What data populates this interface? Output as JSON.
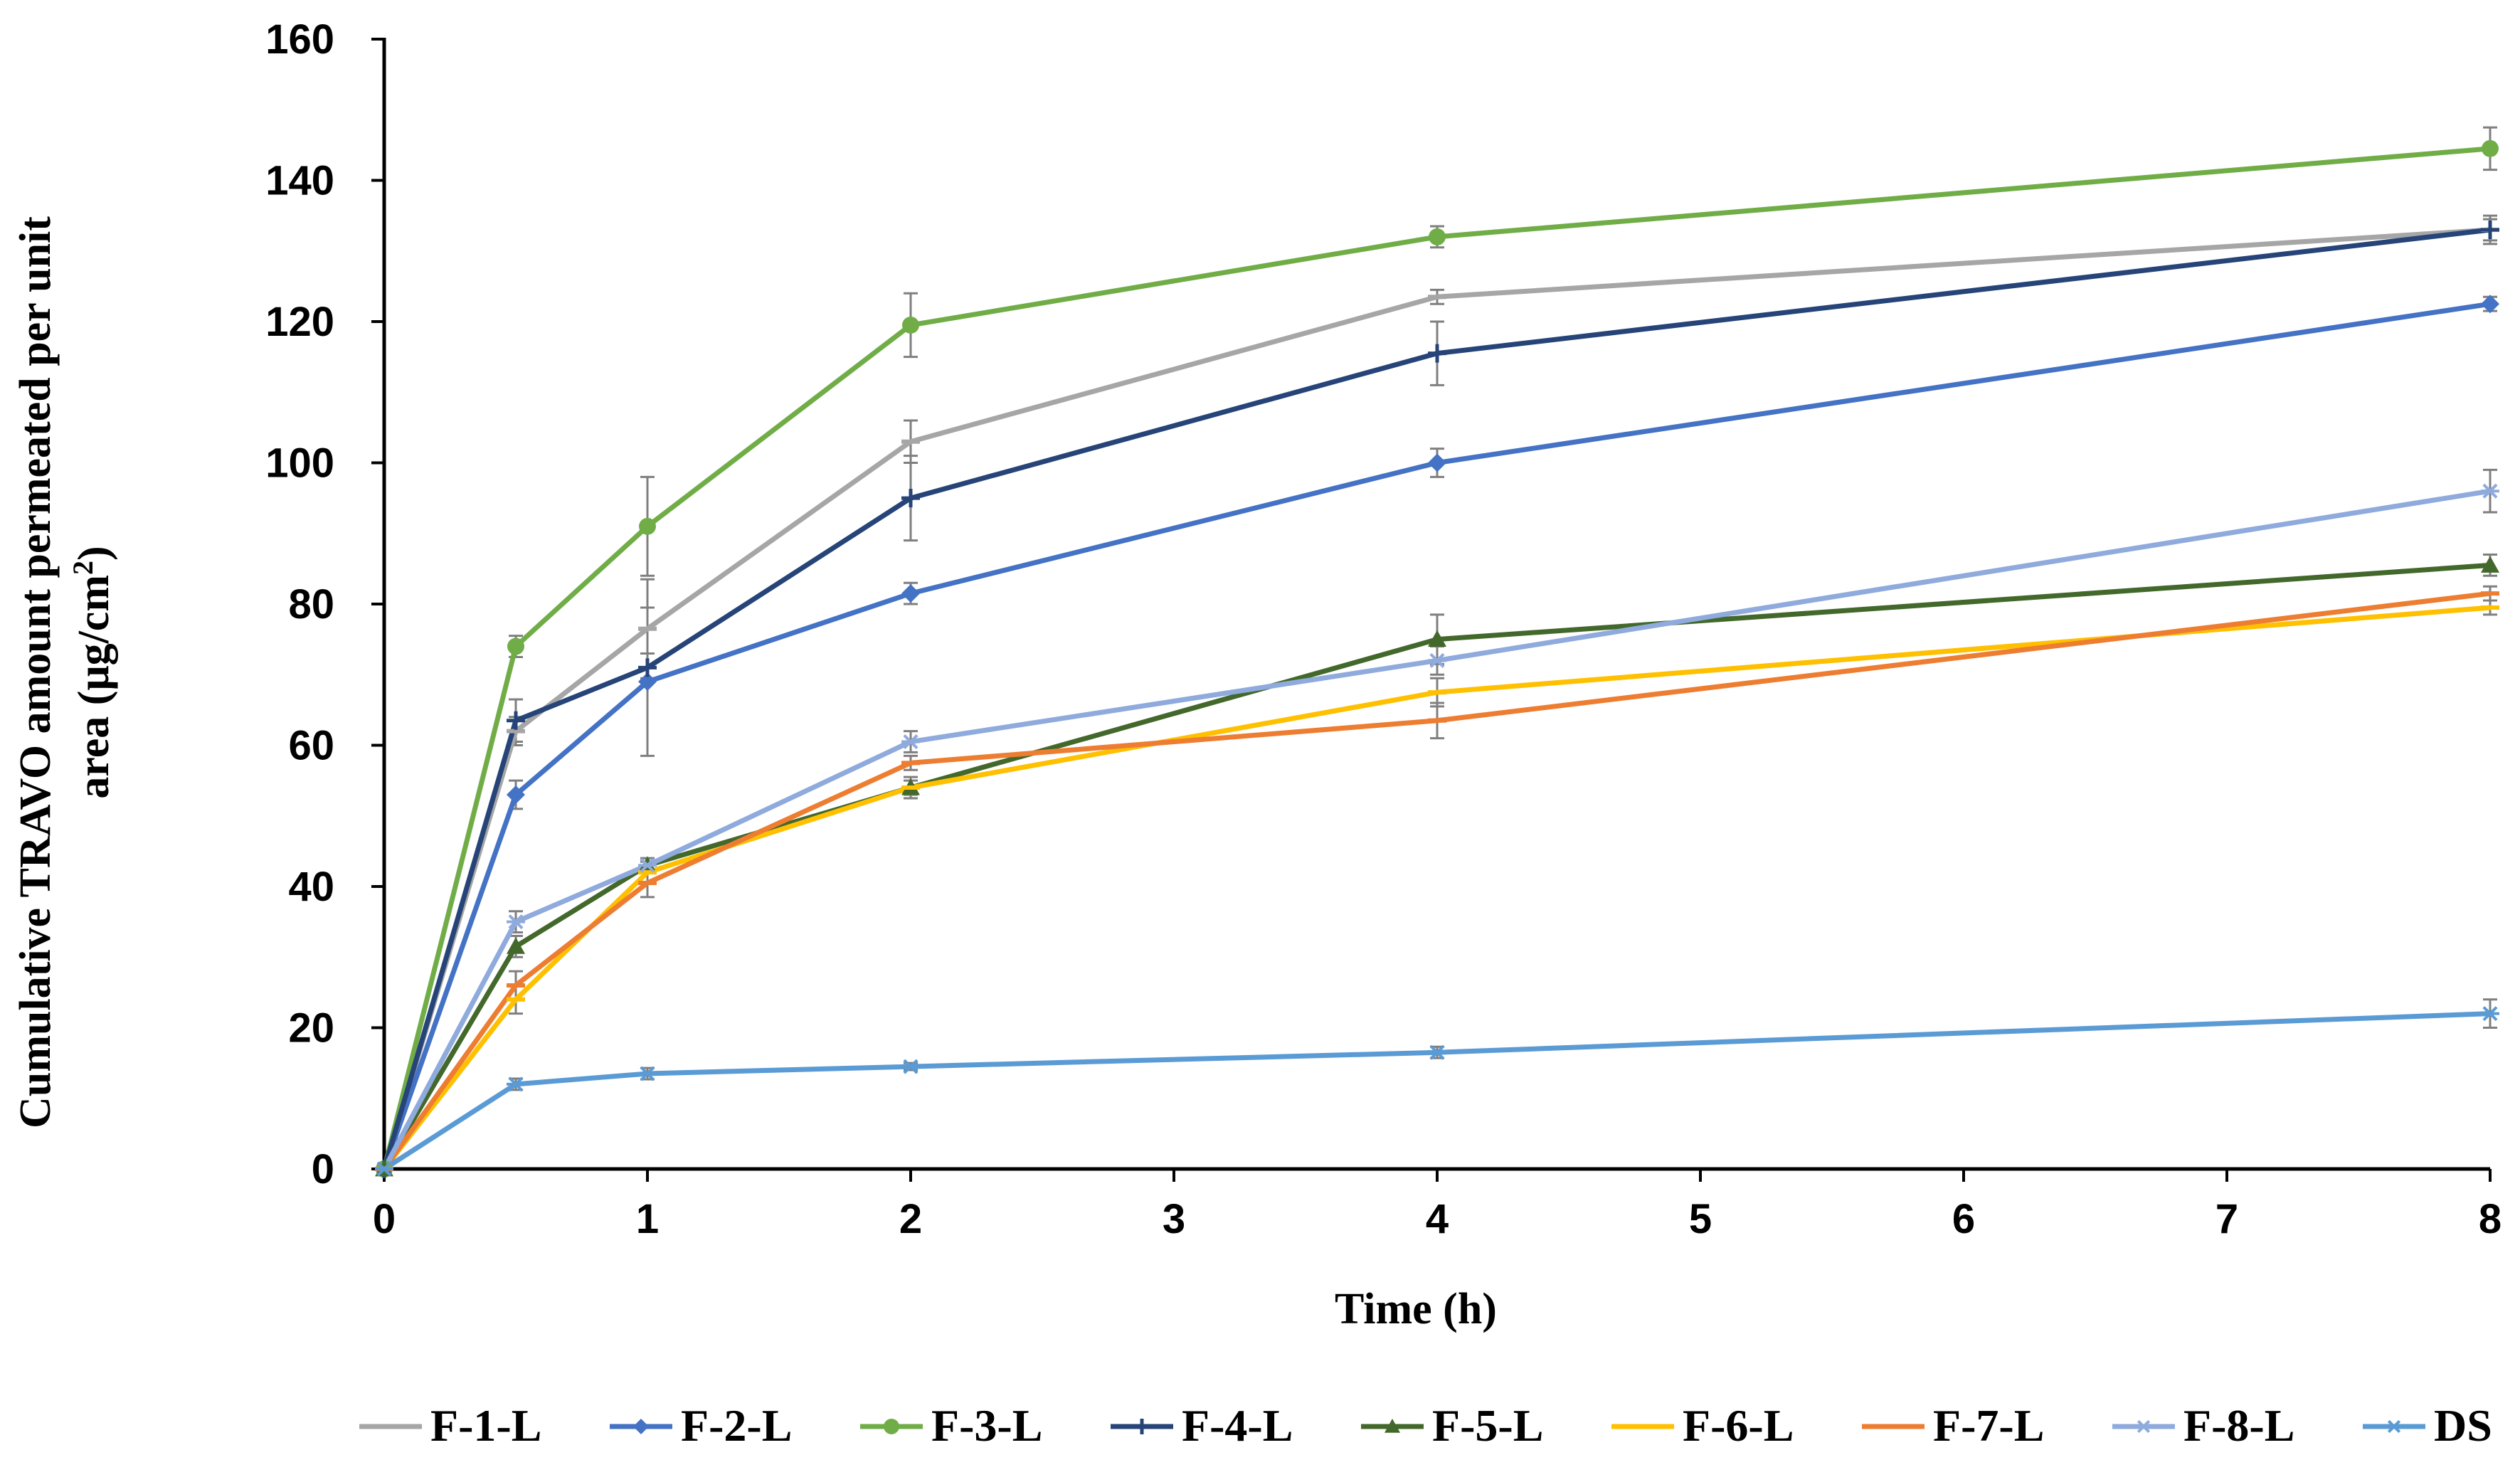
{
  "chart_data": {
    "type": "line",
    "title": "",
    "xlabel": "Time (h)",
    "ylabel_line1": "Cumulative TRAVO amount permeated per unit",
    "ylabel_line2_pre": "area (μg/cm",
    "ylabel_line2_sup": "2",
    "ylabel_line2_post": ")",
    "x": [
      0,
      0.5,
      1,
      2,
      4,
      8
    ],
    "xlim": [
      0,
      8
    ],
    "ylim": [
      0,
      160
    ],
    "xticks": [
      "0",
      "1",
      "2",
      "3",
      "4",
      "5",
      "6",
      "7",
      "8"
    ],
    "yticks": [
      "0",
      "20",
      "40",
      "60",
      "80",
      "100",
      "120",
      "140",
      "160"
    ],
    "grid": false,
    "legend_position": "bottom",
    "series": [
      {
        "name": "F-1-L",
        "color": "#a6a6a6",
        "marker": "dash",
        "values": [
          0,
          62,
          76.5,
          103,
          123.5,
          133
        ],
        "errors": [
          0,
          2,
          7,
          3,
          1,
          1.5
        ]
      },
      {
        "name": "F-2-L",
        "color": "#4472c4",
        "marker": "diamond",
        "values": [
          0,
          53,
          69,
          81.5,
          100,
          122.5
        ],
        "errors": [
          0,
          2,
          10.5,
          1.5,
          2,
          1
        ]
      },
      {
        "name": "F-3-L",
        "color": "#70ad47",
        "marker": "circle",
        "values": [
          0,
          74,
          91,
          119.5,
          132,
          144.5
        ],
        "errors": [
          0,
          1.5,
          7,
          4.5,
          1.5,
          3
        ]
      },
      {
        "name": "F-4-L",
        "color": "#264478",
        "marker": "plus",
        "values": [
          0,
          63.5,
          71,
          95,
          115.5,
          133
        ],
        "errors": [
          0,
          3,
          2,
          6,
          4.5,
          2
        ]
      },
      {
        "name": "F-5-L",
        "color": "#43682b",
        "marker": "triangle",
        "values": [
          0,
          31.5,
          43,
          54,
          75,
          85.5
        ],
        "errors": [
          0,
          1.5,
          1,
          1,
          3.5,
          1.5
        ]
      },
      {
        "name": "F-6-L",
        "color": "#ffc000",
        "marker": "dash",
        "values": [
          0,
          24,
          42,
          54,
          67.5,
          79.5
        ],
        "errors": [
          0,
          2,
          1.5,
          1.5,
          2,
          1
        ]
      },
      {
        "name": "F-7-L",
        "color": "#ed7d31",
        "marker": "dash",
        "values": [
          0,
          26,
          40.5,
          57.5,
          63.5,
          81.5
        ],
        "errors": [
          0,
          2,
          2,
          1,
          2.5,
          1
        ]
      },
      {
        "name": "F-8-L",
        "color": "#8faadc",
        "marker": "star",
        "values": [
          0,
          35,
          43,
          60.5,
          72,
          96
        ],
        "errors": [
          0,
          1.5,
          1,
          1.5,
          2,
          3
        ]
      },
      {
        "name": "DS",
        "color": "#5b9bd5",
        "marker": "star",
        "values": [
          0,
          12,
          13.5,
          14.5,
          16.5,
          22
        ],
        "errors": [
          0,
          0.8,
          0.8,
          0.5,
          0.8,
          2
        ]
      }
    ]
  }
}
